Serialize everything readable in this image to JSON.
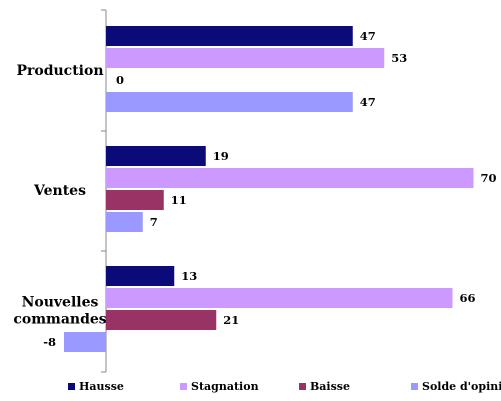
{
  "chart_data": {
    "type": "bar",
    "orientation": "horizontal",
    "categories": [
      [
        "Production"
      ],
      [
        "Ventes"
      ],
      [
        "Nouvelles",
        "commandes"
      ]
    ],
    "series": [
      {
        "name": "Hausse",
        "color": "#0a0a78",
        "values": [
          47,
          19,
          13
        ]
      },
      {
        "name": "Stagnation",
        "color": "#cc99ff",
        "values": [
          53,
          70,
          66
        ]
      },
      {
        "name": "Baisse",
        "color": "#993366",
        "values": [
          0,
          11,
          21
        ]
      },
      {
        "name": "Solde d'opinion",
        "color": "#9999ff",
        "values": [
          47,
          7,
          -8
        ]
      }
    ],
    "xlim": [
      -10,
      73
    ],
    "grid": false,
    "legend": "bottom"
  }
}
